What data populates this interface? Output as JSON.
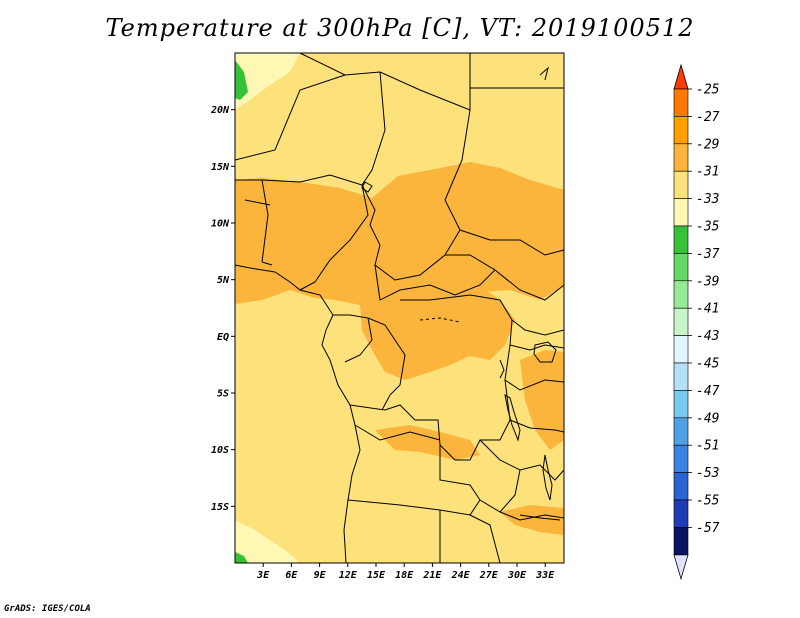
{
  "title": "Temperature at 300hPa [C], VT: 2019100512",
  "credit": "GrADS: IGES/COLA",
  "map": {
    "lon_range": [
      0,
      35
    ],
    "lat_range": [
      -20,
      25
    ],
    "lon_ticks": [
      "3E",
      "6E",
      "9E",
      "12E",
      "15E",
      "18E",
      "21E",
      "24E",
      "27E",
      "30E",
      "33E"
    ],
    "lat_ticks": [
      "20N",
      "15N",
      "10N",
      "5N",
      "EQ",
      "5S",
      "10S",
      "15S"
    ],
    "dominant_band": "-33 to -31",
    "warm_bands": [
      "-31 to -29"
    ],
    "cool_patches": [
      "-37 to -35",
      "-35 to -33"
    ]
  },
  "colorbar": {
    "labels": [
      "-25",
      "-27",
      "-29",
      "-31",
      "-33",
      "-35",
      "-37",
      "-39",
      "-41",
      "-43",
      "-45",
      "-47",
      "-49",
      "-51",
      "-53",
      "-55",
      "-57"
    ],
    "colors": [
      "#ff3c00",
      "#ff7800",
      "#ffa000",
      "#fbb43c",
      "#fde17a",
      "#fef8b4",
      "#36c236",
      "#64d864",
      "#96e996",
      "#c8f5c8",
      "#e0f6ff",
      "#b4e0f5",
      "#78c8f0",
      "#50a0e6",
      "#3c82e1",
      "#2864d2",
      "#1e3cb4",
      "#0a1464"
    ],
    "top_arrow": "#ff3c00",
    "bottom_arrow": "#e0e0ff"
  },
  "palette": {
    "base": "#fde17a",
    "warm": "#fbb43c",
    "cool": "#fef8b4",
    "green": "#36c236",
    "border": "#000000"
  }
}
